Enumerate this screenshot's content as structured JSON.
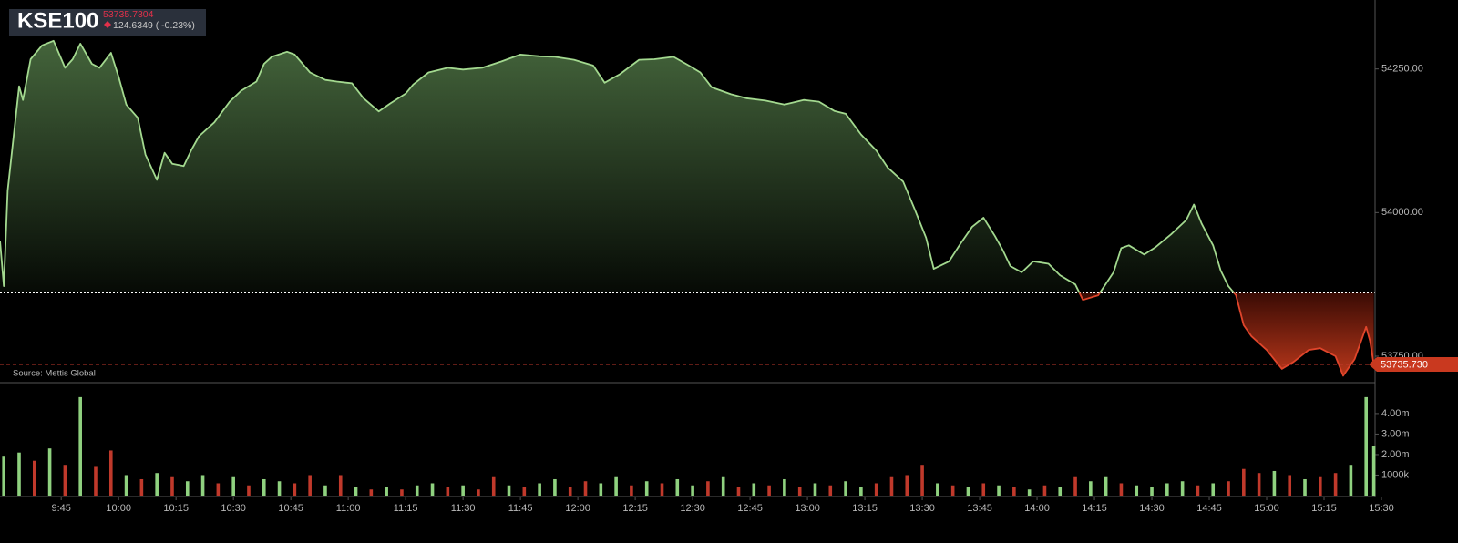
{
  "chart_data": [
    {
      "type": "line",
      "title": "KSE100",
      "last_price": 53735.7304,
      "change": "124.6349 ( -0.23%)",
      "source": "Source: Mettis Global",
      "price_tag": "53735.730",
      "baseline": 53860.3653,
      "color": "#a3d98f",
      "negative_color": "#e0452b",
      "fill": true,
      "xlim": [
        569,
        930
      ],
      "ylim": [
        53704,
        54370
      ],
      "yticks": [
        {
          "value": 53750,
          "label": "53750.00"
        },
        {
          "value": 54000,
          "label": "54000.00"
        },
        {
          "value": 54250,
          "label": "54250.00"
        }
      ],
      "x": [
        569,
        570,
        571,
        574,
        575,
        577,
        580,
        583,
        586,
        588,
        590,
        593,
        595,
        598,
        600,
        602,
        605,
        607,
        610,
        612,
        614,
        617,
        619,
        621,
        625,
        629,
        632,
        636,
        638,
        640,
        644,
        646,
        650,
        654,
        657,
        661,
        664,
        668,
        671,
        675,
        677,
        681,
        686,
        690,
        695,
        700,
        705,
        710,
        714,
        719,
        724,
        727,
        731,
        736,
        740,
        745,
        749,
        752,
        755,
        760,
        764,
        769,
        774,
        779,
        783,
        787,
        790,
        794,
        798,
        801,
        805,
        808,
        811,
        813,
        817,
        820,
        823,
        826,
        829,
        831,
        833,
        836,
        839,
        843,
        846,
        850,
        852,
        856,
        860,
        862,
        864,
        868,
        871,
        875,
        879,
        881,
        883,
        886,
        888,
        890,
        892,
        894,
        896,
        900,
        904,
        907,
        911,
        914,
        918,
        920,
        923,
        926,
        927,
        928
      ],
      "values": [
        53951,
        53872,
        54038,
        54220,
        54196,
        54267,
        54291,
        54299,
        54252,
        54267,
        54294,
        54259,
        54252,
        54278,
        54236,
        54188,
        54165,
        54101,
        54057,
        54104,
        54085,
        54081,
        54109,
        54133,
        54157,
        54193,
        54212,
        54228,
        54259,
        54271,
        54280,
        54275,
        54244,
        54231,
        54228,
        54225,
        54199,
        54176,
        54190,
        54207,
        54223,
        54244,
        54252,
        54249,
        54252,
        54263,
        54275,
        54272,
        54271,
        54266,
        54256,
        54226,
        54241,
        54266,
        54267,
        54271,
        54256,
        54244,
        54218,
        54206,
        54199,
        54195,
        54188,
        54196,
        54193,
        54177,
        54172,
        54136,
        54108,
        54078,
        54054,
        54006,
        53956,
        53902,
        53915,
        53946,
        53975,
        53991,
        53959,
        53935,
        53907,
        53896,
        53915,
        53911,
        53891,
        53875,
        53848,
        53856,
        53896,
        53938,
        53943,
        53927,
        53940,
        53962,
        53987,
        54014,
        53981,
        53943,
        53899,
        53872,
        53856,
        53804,
        53785,
        53761,
        53728,
        53740,
        53761,
        53764,
        53750,
        53716,
        53745,
        53801,
        53777,
        53735.7304
      ]
    },
    {
      "type": "bar",
      "up_color": "#8fd17f",
      "down_color": "#c0392b",
      "xlim": [
        569,
        930
      ],
      "ylim": [
        0,
        5150000
      ],
      "yticks": [
        {
          "value": 1000000,
          "label": "1000k"
        },
        {
          "value": 2000000,
          "label": "2.00m"
        },
        {
          "value": 3000000,
          "label": "3.00m"
        },
        {
          "value": 4000000,
          "label": "4.00m"
        }
      ],
      "xticks": [
        {
          "value": 585,
          "label": "9:45"
        },
        {
          "value": 600,
          "label": "10:00"
        },
        {
          "value": 615,
          "label": "10:15"
        },
        {
          "value": 630,
          "label": "10:30"
        },
        {
          "value": 645,
          "label": "10:45"
        },
        {
          "value": 660,
          "label": "11:00"
        },
        {
          "value": 675,
          "label": "11:15"
        },
        {
          "value": 690,
          "label": "11:30"
        },
        {
          "value": 705,
          "label": "11:45"
        },
        {
          "value": 720,
          "label": "12:00"
        },
        {
          "value": 735,
          "label": "12:15"
        },
        {
          "value": 750,
          "label": "12:30"
        },
        {
          "value": 765,
          "label": "12:45"
        },
        {
          "value": 780,
          "label": "13:00"
        },
        {
          "value": 795,
          "label": "13:15"
        },
        {
          "value": 810,
          "label": "13:30"
        },
        {
          "value": 825,
          "label": "13:45"
        },
        {
          "value": 840,
          "label": "14:00"
        },
        {
          "value": 855,
          "label": "14:15"
        },
        {
          "value": 870,
          "label": "14:30"
        },
        {
          "value": 885,
          "label": "14:45"
        },
        {
          "value": 900,
          "label": "15:00"
        },
        {
          "value": 915,
          "label": "15:15"
        },
        {
          "value": 930,
          "label": "15:30"
        }
      ],
      "x": [
        570,
        574,
        578,
        582,
        586,
        590,
        594,
        598,
        602,
        606,
        610,
        614,
        618,
        622,
        626,
        630,
        634,
        638,
        642,
        646,
        650,
        654,
        658,
        662,
        666,
        670,
        674,
        678,
        682,
        686,
        690,
        694,
        698,
        702,
        706,
        710,
        714,
        718,
        722,
        726,
        730,
        734,
        738,
        742,
        746,
        750,
        754,
        758,
        762,
        766,
        770,
        774,
        778,
        782,
        786,
        790,
        794,
        798,
        802,
        806,
        810,
        814,
        818,
        822,
        826,
        830,
        834,
        838,
        842,
        846,
        850,
        854,
        858,
        862,
        866,
        870,
        874,
        878,
        882,
        886,
        890,
        894,
        898,
        902,
        906,
        910,
        914,
        918,
        922,
        926,
        928
      ],
      "values": [
        1900000,
        2100000,
        1700000,
        2300000,
        1500000,
        4800000,
        1400000,
        2200000,
        1000000,
        800000,
        1100000,
        900000,
        700000,
        1000000,
        600000,
        900000,
        500000,
        800000,
        700000,
        600000,
        1000000,
        500000,
        1000000,
        400000,
        300000,
        400000,
        300000,
        500000,
        600000,
        400000,
        500000,
        300000,
        900000,
        500000,
        400000,
        600000,
        800000,
        400000,
        700000,
        600000,
        900000,
        500000,
        700000,
        600000,
        800000,
        500000,
        700000,
        900000,
        400000,
        600000,
        500000,
        800000,
        400000,
        600000,
        500000,
        700000,
        400000,
        600000,
        900000,
        1000000,
        1500000,
        600000,
        500000,
        400000,
        600000,
        500000,
        400000,
        300000,
        500000,
        400000,
        900000,
        700000,
        900000,
        600000,
        500000,
        400000,
        600000,
        700000,
        500000,
        600000,
        700000,
        1300000,
        1100000,
        1200000,
        1000000,
        800000,
        900000,
        1100000,
        1500000,
        4800000,
        2400000
      ],
      "directions": [
        "up",
        "up",
        "down",
        "up",
        "down",
        "up",
        "down",
        "down",
        "up",
        "down",
        "up",
        "down",
        "up",
        "up",
        "down",
        "up",
        "down",
        "up",
        "up",
        "down",
        "down",
        "up",
        "down",
        "up",
        "down",
        "up",
        "down",
        "up",
        "up",
        "down",
        "up",
        "down",
        "down",
        "up",
        "down",
        "up",
        "up",
        "down",
        "down",
        "up",
        "up",
        "down",
        "up",
        "down",
        "up",
        "up",
        "down",
        "up",
        "down",
        "up",
        "down",
        "up",
        "down",
        "up",
        "down",
        "up",
        "up",
        "down",
        "down",
        "down",
        "down",
        "up",
        "down",
        "up",
        "down",
        "up",
        "down",
        "up",
        "down",
        "up",
        "down",
        "up",
        "up",
        "down",
        "up",
        "up",
        "up",
        "up",
        "down",
        "up",
        "down",
        "down",
        "down",
        "up",
        "down",
        "up",
        "down",
        "down",
        "up",
        "up",
        "up"
      ]
    }
  ]
}
